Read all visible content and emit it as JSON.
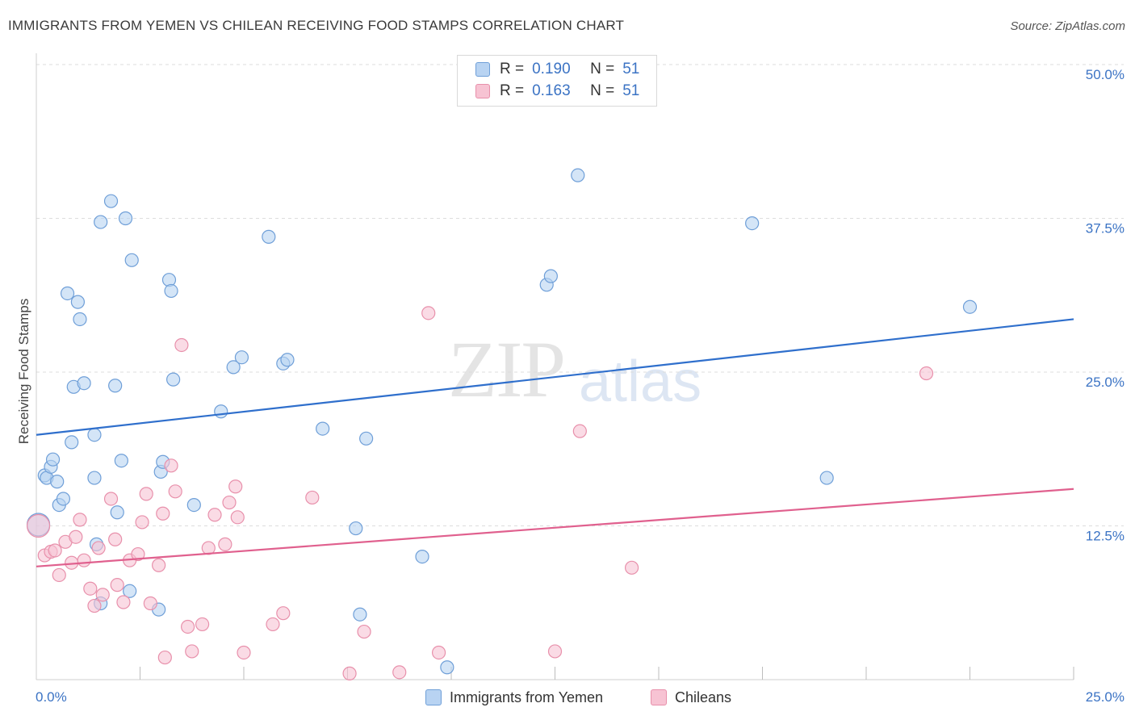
{
  "title": "IMMIGRANTS FROM YEMEN VS CHILEAN RECEIVING FOOD STAMPS CORRELATION CHART",
  "source": "Source: ZipAtlas.com",
  "watermark": {
    "zip": "ZIP",
    "atlas": "atlas"
  },
  "colors": {
    "blue_fill": "#b8d3f2",
    "blue_stroke": "#6f9fd8",
    "blue_line": "#2f6fcc",
    "pink_fill": "#f7c3d3",
    "pink_stroke": "#e890ab",
    "pink_line": "#e0608e",
    "tick_text": "#3b73c4",
    "grid": "#dddddd"
  },
  "legend_top": [
    {
      "r_label": "R =",
      "r_value": "0.190",
      "n_label": "N =",
      "n_value": "51"
    },
    {
      "r_label": "R =",
      "r_value": "0.163",
      "n_label": "N =",
      "n_value": "51"
    }
  ],
  "legend_bottom": [
    "Immigrants from Yemen",
    "Chileans"
  ],
  "chart_data": {
    "type": "scatter",
    "title": "IMMIGRANTS FROM YEMEN VS CHILEAN RECEIVING FOOD STAMPS CORRELATION CHART",
    "xlabel": "",
    "ylabel": "Receiving Food Stamps",
    "xlim": [
      0,
      25
    ],
    "ylim": [
      0,
      50
    ],
    "x_tick_labels": [
      {
        "value": 0,
        "label": "0.0%"
      },
      {
        "value": 25,
        "label": "25.0%"
      }
    ],
    "y_tick_labels": [
      {
        "value": 12.5,
        "label": "12.5%"
      },
      {
        "value": 25,
        "label": "25.0%"
      },
      {
        "value": 37.5,
        "label": "37.5%"
      },
      {
        "value": 50,
        "label": "50.0%"
      }
    ],
    "grid": true,
    "legend_position": "top-center",
    "series": [
      {
        "name": "Immigrants from Yemen",
        "r": 0.19,
        "n": 51,
        "trend": {
          "x": [
            0,
            25
          ],
          "y": [
            19.9,
            29.3
          ]
        },
        "points": [
          [
            0.05,
            12.6
          ],
          [
            0.2,
            16.6
          ],
          [
            0.25,
            16.4
          ],
          [
            0.35,
            17.3
          ],
          [
            0.4,
            17.9
          ],
          [
            0.5,
            16.1
          ],
          [
            0.55,
            14.2
          ],
          [
            0.65,
            14.7
          ],
          [
            0.75,
            31.4
          ],
          [
            0.85,
            19.3
          ],
          [
            0.9,
            23.8
          ],
          [
            1.0,
            30.7
          ],
          [
            1.05,
            29.3
          ],
          [
            1.15,
            24.1
          ],
          [
            1.4,
            16.4
          ],
          [
            1.4,
            19.9
          ],
          [
            1.45,
            11.0
          ],
          [
            1.55,
            6.2
          ],
          [
            1.55,
            37.2
          ],
          [
            1.8,
            38.9
          ],
          [
            1.9,
            23.9
          ],
          [
            1.95,
            13.6
          ],
          [
            2.05,
            17.8
          ],
          [
            2.15,
            37.5
          ],
          [
            2.25,
            7.2
          ],
          [
            2.3,
            34.1
          ],
          [
            2.95,
            5.7
          ],
          [
            3.0,
            16.9
          ],
          [
            3.05,
            17.7
          ],
          [
            3.2,
            32.5
          ],
          [
            3.25,
            31.6
          ],
          [
            3.3,
            24.4
          ],
          [
            3.8,
            14.2
          ],
          [
            4.45,
            21.8
          ],
          [
            4.75,
            25.4
          ],
          [
            4.95,
            26.2
          ],
          [
            5.6,
            36.0
          ],
          [
            5.95,
            25.7
          ],
          [
            6.05,
            26.0
          ],
          [
            6.9,
            20.4
          ],
          [
            7.7,
            12.3
          ],
          [
            7.8,
            5.3
          ],
          [
            7.95,
            19.6
          ],
          [
            9.3,
            10.0
          ],
          [
            9.9,
            1.0
          ],
          [
            12.3,
            32.1
          ],
          [
            12.4,
            32.8
          ],
          [
            13.05,
            41.0
          ],
          [
            17.25,
            37.1
          ],
          [
            19.05,
            16.4
          ],
          [
            22.5,
            30.3
          ]
        ]
      },
      {
        "name": "Chileans",
        "r": 0.163,
        "n": 51,
        "trend": {
          "x": [
            0,
            25
          ],
          "y": [
            9.2,
            15.5
          ]
        },
        "points": [
          [
            0.05,
            12.5
          ],
          [
            0.2,
            10.1
          ],
          [
            0.35,
            10.4
          ],
          [
            0.45,
            10.5
          ],
          [
            0.55,
            8.5
          ],
          [
            0.7,
            11.2
          ],
          [
            0.85,
            9.5
          ],
          [
            0.95,
            11.6
          ],
          [
            1.05,
            13.0
          ],
          [
            1.15,
            9.7
          ],
          [
            1.3,
            7.4
          ],
          [
            1.4,
            6.0
          ],
          [
            1.5,
            10.7
          ],
          [
            1.6,
            6.9
          ],
          [
            1.8,
            14.7
          ],
          [
            1.9,
            11.4
          ],
          [
            1.95,
            7.7
          ],
          [
            2.1,
            6.3
          ],
          [
            2.25,
            9.7
          ],
          [
            2.45,
            10.2
          ],
          [
            2.55,
            12.8
          ],
          [
            2.65,
            15.1
          ],
          [
            2.75,
            6.2
          ],
          [
            2.95,
            9.3
          ],
          [
            3.05,
            13.5
          ],
          [
            3.1,
            1.8
          ],
          [
            3.25,
            17.4
          ],
          [
            3.35,
            15.3
          ],
          [
            3.5,
            27.2
          ],
          [
            3.65,
            4.3
          ],
          [
            3.75,
            2.3
          ],
          [
            4.0,
            4.5
          ],
          [
            4.15,
            10.7
          ],
          [
            4.3,
            13.4
          ],
          [
            4.55,
            11.0
          ],
          [
            4.65,
            14.4
          ],
          [
            4.8,
            15.7
          ],
          [
            4.85,
            13.2
          ],
          [
            5.0,
            2.2
          ],
          [
            5.7,
            4.5
          ],
          [
            5.95,
            5.4
          ],
          [
            6.65,
            14.8
          ],
          [
            7.55,
            0.5
          ],
          [
            7.9,
            3.9
          ],
          [
            8.75,
            0.6
          ],
          [
            9.7,
            2.2
          ],
          [
            9.45,
            29.8
          ],
          [
            12.5,
            2.3
          ],
          [
            13.1,
            20.2
          ],
          [
            14.35,
            9.1
          ],
          [
            21.45,
            24.9
          ]
        ]
      }
    ]
  }
}
